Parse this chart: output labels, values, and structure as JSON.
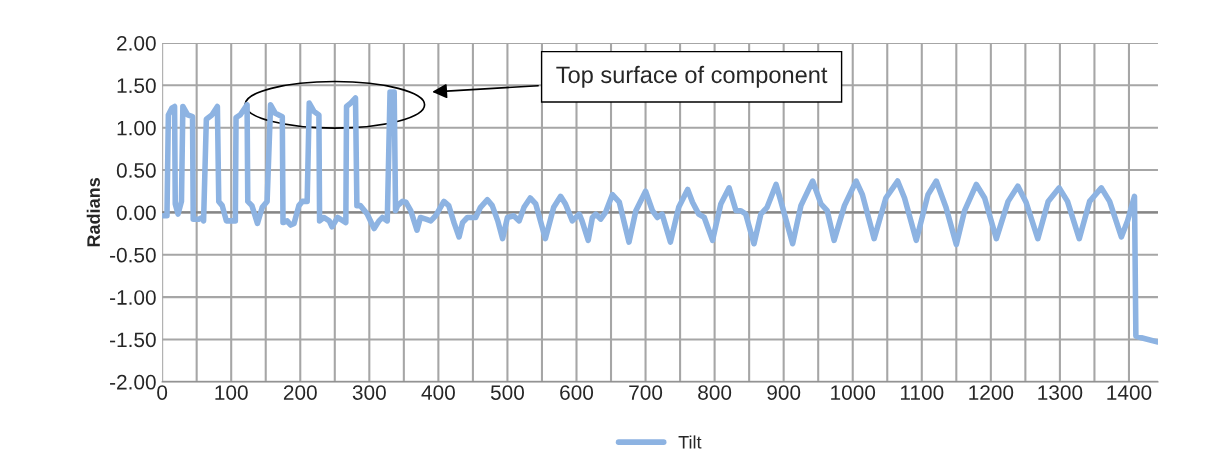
{
  "chart_data": {
    "type": "line",
    "ylabel": "Radians",
    "legend": "bottom",
    "grid": true,
    "marker": "none",
    "line_style": "solid",
    "xlim": [
      0,
      1442
    ],
    "ylim": [
      -2,
      2
    ],
    "yticks": [
      {
        "value": -2,
        "label": "-2.00"
      },
      {
        "value": -1.5,
        "label": "-1.50"
      },
      {
        "value": -1,
        "label": "-1.00"
      },
      {
        "value": -0.5,
        "label": "-0.50"
      },
      {
        "value": 0,
        "label": "0.00"
      },
      {
        "value": 0.5,
        "label": "0.50"
      },
      {
        "value": 1,
        "label": "1.00"
      },
      {
        "value": 1.5,
        "label": "1.50"
      },
      {
        "value": 2,
        "label": "2.00"
      }
    ],
    "xticks": [
      0,
      {
        "value": 50,
        "label": null
      },
      100,
      {
        "value": 150,
        "label": null
      },
      200,
      {
        "value": 250,
        "label": null
      },
      300,
      {
        "value": 350,
        "label": null
      },
      400,
      {
        "value": 450,
        "label": null
      },
      500,
      {
        "value": 550,
        "label": null
      },
      600,
      {
        "value": 650,
        "label": null
      },
      700,
      {
        "value": 750,
        "label": null
      },
      800,
      {
        "value": 850,
        "label": null
      },
      900,
      {
        "value": 950,
        "label": null
      },
      1000,
      {
        "value": 1050,
        "label": null
      },
      1100,
      {
        "value": 1150,
        "label": null
      },
      1200,
      {
        "value": 1250,
        "label": null
      },
      1300,
      {
        "value": 1350,
        "label": null
      },
      1400
    ],
    "annotations": [
      "Top surface of component"
    ],
    "series": [
      {
        "name": "Tilt",
        "color": "#8db3e2",
        "x": [
          2,
          7,
          9,
          14,
          18,
          19,
          23,
          28,
          30,
          37,
          44,
          45,
          53,
          58,
          60,
          64,
          72,
          80,
          82,
          87,
          93,
          106,
          107,
          113,
          123,
          124,
          130,
          138,
          145,
          152,
          157,
          164,
          174,
          175,
          181,
          186,
          191,
          198,
          203,
          210,
          213,
          220,
          227,
          228,
          234,
          242,
          246,
          254,
          266,
          267,
          273,
          280,
          282,
          287,
          297,
          307,
          314,
          319,
          326,
          330,
          336,
          338,
          341,
          348,
          353,
          360,
          369,
          374,
          382,
          389,
          396,
          408,
          415,
          423,
          430,
          435,
          442,
          454,
          461,
          471,
          478,
          486,
          493,
          500,
          509,
          517,
          524,
          533,
          541,
          555,
          567,
          577,
          584,
          594,
          604,
          608,
          617,
          623,
          628,
          635,
          642,
          652,
          662,
          676,
          686,
          700,
          710,
          717,
          724,
          736,
          748,
          761,
          768,
          777,
          785,
          797,
          809,
          821,
          831,
          838,
          845,
          857,
          867,
          876,
          889,
          896,
          913,
          925,
          942,
          954,
          963,
          973,
          988,
          1005,
          1014,
          1031,
          1048,
          1065,
          1075,
          1092,
          1109,
          1121,
          1135,
          1150,
          1162,
          1179,
          1191,
          1208,
          1225,
          1239,
          1251,
          1268,
          1283,
          1299,
          1311,
          1328,
          1343,
          1360,
          1372,
          1389,
          1398,
          1408,
          1410,
          1418,
          1442
        ],
        "values": [
          -0.04,
          -0.04,
          1.15,
          1.23,
          1.25,
          0.1,
          -0.02,
          0.13,
          1.25,
          1.15,
          1.13,
          -0.08,
          -0.08,
          -0.06,
          -0.1,
          1.1,
          1.15,
          1.25,
          0.13,
          0.08,
          -0.1,
          -0.1,
          1.12,
          1.15,
          1.27,
          0.13,
          0.08,
          -0.13,
          0.06,
          0.13,
          1.27,
          1.17,
          1.13,
          -0.12,
          -0.1,
          -0.15,
          -0.13,
          0.08,
          0.13,
          0.13,
          1.29,
          1.19,
          1.15,
          -0.1,
          -0.06,
          -0.1,
          -0.17,
          -0.06,
          -0.12,
          1.25,
          1.29,
          1.35,
          0.08,
          0.08,
          -0.02,
          -0.19,
          -0.1,
          -0.06,
          -0.1,
          1.42,
          1.42,
          0.02,
          0.08,
          0.13,
          0.12,
          0.02,
          -0.21,
          -0.06,
          -0.08,
          -0.1,
          -0.04,
          0.13,
          0.08,
          -0.13,
          -0.29,
          -0.12,
          -0.06,
          -0.06,
          0.06,
          0.15,
          0.08,
          -0.1,
          -0.31,
          -0.06,
          -0.04,
          -0.1,
          0.06,
          0.17,
          0.1,
          -0.31,
          0.06,
          0.19,
          0.1,
          -0.1,
          -0.02,
          -0.1,
          -0.33,
          -0.06,
          -0.02,
          -0.08,
          0.0,
          0.21,
          0.12,
          -0.35,
          0.02,
          0.25,
          0.02,
          -0.06,
          -0.02,
          -0.35,
          0.06,
          0.27,
          0.12,
          -0.02,
          -0.06,
          -0.33,
          0.1,
          0.29,
          0.02,
          0.02,
          -0.02,
          -0.37,
          -0.02,
          0.06,
          0.33,
          0.13,
          -0.37,
          0.08,
          0.37,
          0.1,
          0.02,
          -0.33,
          0.08,
          0.37,
          0.21,
          -0.31,
          0.17,
          0.37,
          0.17,
          -0.33,
          0.21,
          0.37,
          0.06,
          -0.38,
          0.02,
          0.33,
          0.17,
          -0.31,
          0.13,
          0.31,
          0.12,
          -0.31,
          0.13,
          0.29,
          0.13,
          -0.31,
          0.13,
          0.29,
          0.13,
          -0.29,
          -0.1,
          0.19,
          -1.46,
          -1.48,
          -1.53
        ]
      }
    ]
  }
}
